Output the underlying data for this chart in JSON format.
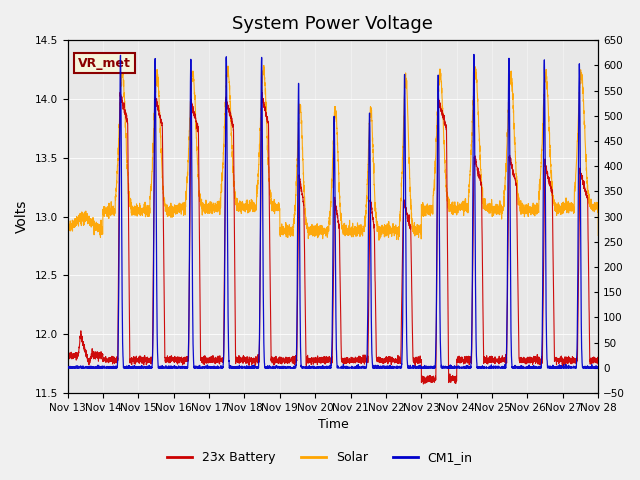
{
  "title": "System Power Voltage",
  "xlabel": "Time",
  "ylabel": "Volts",
  "ylim_left": [
    11.5,
    14.5
  ],
  "ylim_right": [
    -50,
    650
  ],
  "background_color": "#f0f0f0",
  "plot_bg_color": "#e8e8e8",
  "annotation_text": "VR_met",
  "annotation_color": "#8B0000",
  "annotation_bg": "#f5f5dc",
  "legend_labels": [
    "23x Battery",
    "Solar",
    "CM1_in"
  ],
  "legend_colors": [
    "#cc0000",
    "#ffa500",
    "#0000cc"
  ],
  "x_tick_labels": [
    "Nov 13",
    "Nov 14",
    "Nov 15",
    "Nov 16",
    "Nov 17",
    "Nov 18",
    "Nov 19",
    "Nov 20",
    "Nov 21",
    "Nov 22",
    "Nov 23",
    "Nov 24",
    "Nov 25",
    "Nov 26",
    "Nov 27",
    "Nov 28"
  ],
  "x_tick_positions": [
    0,
    1,
    2,
    3,
    4,
    5,
    6,
    7,
    8,
    9,
    10,
    11,
    12,
    13,
    14,
    15
  ],
  "n_days": 15,
  "right_ticks": [
    -50,
    0,
    50,
    100,
    150,
    200,
    250,
    300,
    350,
    400,
    450,
    500,
    550,
    600,
    650
  ],
  "title_fontsize": 13,
  "tick_fontsize": 7.5,
  "legend_fontsize": 9
}
